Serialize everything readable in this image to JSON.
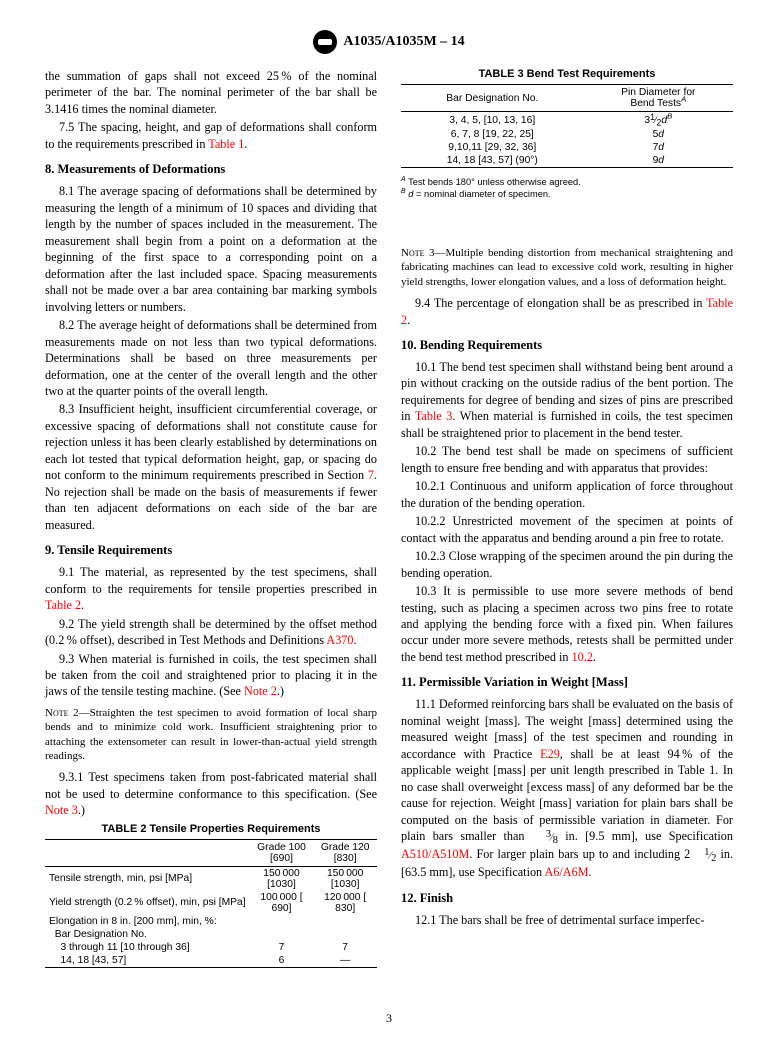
{
  "header": {
    "title": "A1035/A1035M – 14"
  },
  "left": {
    "p75a": "the summation of gaps shall not exceed 25 % of the nominal perimeter of the bar. The nominal perimeter of the bar shall be 3.1416 times the nominal diameter.",
    "p75b_lead": "7.5 The spacing, height, and gap of deformations shall conform to the requirements prescribed in ",
    "p75b_link": "Table 1",
    "p75b_tail": ".",
    "s8": "8.  Measurements of Deformations",
    "p81": "8.1 The average spacing of deformations shall be determined by measuring the length of a minimum of 10 spaces and dividing that length by the number of spaces included in the measurement. The measurement shall begin from a point on a deformation at the beginning of the first space to a corresponding point on a deformation after the last included space. Spacing measurements shall not be made over a bar area containing bar marking symbols involving letters or numbers.",
    "p82": "8.2 The average height of deformations shall be determined from measurements made on not less than two typical deformations. Determinations shall be based on three measurements per deformation, one at the center of the overall length and the other two at the quarter points of the overall length.",
    "p83_a": "8.3 Insufficient height, insufficient circumferential coverage, or excessive spacing of deformations shall not constitute cause for rejection unless it has been clearly established by determinations on each lot tested that typical deformation height, gap, or spacing do not conform to the minimum requirements prescribed in Section ",
    "p83_link": "7",
    "p83_b": ". No rejection shall be made on the basis of measurements if fewer than ten adjacent deformations on each side of the bar are measured.",
    "s9": "9.  Tensile Requirements",
    "p91_a": "9.1 The material, as represented by the test specimens, shall conform to the requirements for tensile properties prescribed in ",
    "p91_link": "Table 2",
    "p91_b": ".",
    "p92_a": "9.2 The yield strength shall be determined by the offset method (0.2 % offset), described in Test Methods and Definitions ",
    "p92_link": "A370",
    "p92_b": ".",
    "p93_a": "9.3 When material is furnished in coils, the test specimen shall be taken from the coil and straightened prior to placing it in the jaws of the tensile testing machine. (See ",
    "p93_link": "Note 2",
    "p93_b": ".)",
    "note2": "Straighten the test specimen to avoid formation of local sharp bends and to minimize cold work. Insufficient straightening prior to attaching the extensometer can result in lower-than-actual yield strength readings.",
    "p931_a": "9.3.1 Test specimens taken from post-fabricated material shall not be used to determine conformance to this specification. (See ",
    "p931_link": "Note 3",
    "p931_b": ".)"
  },
  "table2": {
    "caption": "TABLE 2 Tensile Properties Requirements",
    "cols": [
      "",
      "Grade 100 [690]",
      "Grade 120 [830]"
    ],
    "rows": [
      [
        "Tensile strength, min, psi [MPa]",
        "150 000 [1030]",
        "150 000 [1030]"
      ],
      [
        "Yield strength (0.2 % offset), min, psi [MPa]",
        "100 000 [  690]",
        "120 000 [  830]"
      ],
      [
        "Elongation in 8 in. [200 mm], min, %:",
        "",
        ""
      ],
      [
        "  Bar Designation No.",
        "",
        ""
      ],
      [
        "    3 through 11 [10 through 36]",
        "7",
        "7"
      ],
      [
        "    14, 18 [43, 57]",
        "6",
        "—"
      ]
    ]
  },
  "table3": {
    "caption": "TABLE 3 Bend Test Requirements",
    "col1": "Bar Designation No.",
    "col2_a": "Pin Diameter for",
    "col2_b": "Bend Tests",
    "rows": [
      {
        "des": "3, 4, 5, [10, 13, 16]",
        "pin_num": "3",
        "pin_frac_n": "1",
        "pin_frac_d": "2",
        "pin_suf": "d",
        "sup": "B"
      },
      {
        "des": "6, 7, 8 [19, 22, 25]",
        "pin_num": "5",
        "pin_suf": "d"
      },
      {
        "des": "9,10,11 [29, 32, 36]",
        "pin_num": "7",
        "pin_suf": "d"
      },
      {
        "des": "14, 18 [43, 57] (90°)",
        "pin_num": "9",
        "pin_suf": "d"
      }
    ],
    "footA": "Test bends 180° unless otherwise agreed.",
    "footB_a": "d",
    "footB_b": " = nominal diameter of specimen."
  },
  "right": {
    "note3": "Multiple bending distortion from mechanical straightening and fabricating machines can lead to excessive cold work, resulting in higher yield strengths, lower elongation values, and a loss of deformation height.",
    "p94_a": "9.4 The percentage of elongation shall be as prescribed in ",
    "p94_link": "Table 2",
    "p94_b": ".",
    "s10": "10.  Bending Requirements",
    "p101_a": "10.1 The bend test specimen shall withstand being bent around a pin without cracking on the outside radius of the bent portion. The requirements for degree of bending and sizes of pins are prescribed in ",
    "p101_link": "Table 3",
    "p101_b": ". When material is furnished in coils, the test specimen shall be straightened prior to placement in the bend tester.",
    "p102": "10.2 The bend test shall be made on specimens of sufficient length to ensure free bending and with apparatus that provides:",
    "p1021": "10.2.1 Continuous and uniform application of force throughout the duration of the bending operation.",
    "p1022": "10.2.2 Unrestricted movement of the specimen at points of contact with the apparatus and bending around a pin free to rotate.",
    "p1023": "10.2.3 Close wrapping of the specimen around the pin during the bending operation.",
    "p103_a": "10.3 It is permissible to use more severe methods of bend testing, such as placing a specimen across two pins free to rotate and applying the bending force with a fixed pin. When failures occur under more severe methods, retests shall be permitted under the bend test method prescribed in ",
    "p103_link": "10.2",
    "p103_b": ".",
    "s11": "11.  Permissible Variation in Weight [Mass]",
    "p111_a": "11.1 Deformed reinforcing bars shall be evaluated on the basis of nominal weight [mass]. The weight [mass] determined using the measured weight [mass] of the test specimen and rounding in accordance with Practice ",
    "p111_link1": "E29",
    "p111_b": ", shall be at least 94 % of the applicable weight [mass] per unit length prescribed in Table 1. In no case shall overweight [excess mass] of any deformed bar be the cause for rejection. Weight [mass] variation for plain bars shall be computed on the basis of permissible variation in diameter. For plain bars smaller than ",
    "p111_frac_n": "3",
    "p111_frac_d": "8",
    "p111_c": " in. [9.5 mm], use Specification ",
    "p111_link2": "A510/A510M",
    "p111_d": ". For larger plain bars up to and including 2",
    "p111_frac2_n": "1",
    "p111_frac2_d": "2",
    "p111_e": " in. [63.5 mm], use Specification ",
    "p111_link3": "A6/A6M",
    "p111_f": ".",
    "s12": "12.  Finish",
    "p121": "12.1 The bars shall be free of detrimental surface imperfec-"
  },
  "page_number": "3"
}
